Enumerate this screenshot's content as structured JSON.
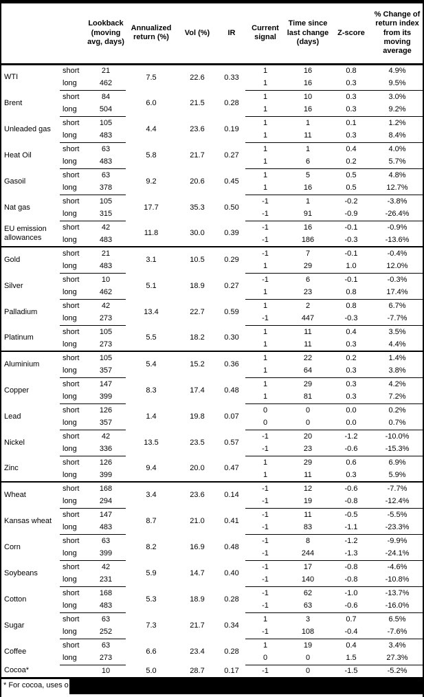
{
  "colors": {
    "text": "#000000",
    "background": "#ffffff",
    "rule": "#000000",
    "redaction": "#000000"
  },
  "table": {
    "columns": [
      {
        "key": "name",
        "label": ""
      },
      {
        "key": "leg",
        "label": ""
      },
      {
        "key": "lookback",
        "label": "Lookback\n(moving\navg, days)"
      },
      {
        "key": "annualized",
        "label": "Annualized\nreturn (%)"
      },
      {
        "key": "vol",
        "label": "Vol (%)"
      },
      {
        "key": "ir",
        "label": "IR"
      },
      {
        "key": "signal",
        "label": "Current\nsignal"
      },
      {
        "key": "time",
        "label": "Time since\nlast change\n(days)"
      },
      {
        "key": "zscore",
        "label": "Z-score"
      },
      {
        "key": "pct",
        "label": "% Change of\nreturn index\nfrom its\nmoving\naverage"
      }
    ],
    "sections": [
      {
        "groups": [
          {
            "name": "WTI",
            "annualized": "7.5",
            "vol": "22.6",
            "ir": "0.33",
            "rows": [
              {
                "leg": "short",
                "lookback": "21",
                "signal": "1",
                "time": "16",
                "zscore": "0.8",
                "pct": "4.9%"
              },
              {
                "leg": "long",
                "lookback": "462",
                "signal": "1",
                "time": "16",
                "zscore": "0.3",
                "pct": "9.5%"
              }
            ]
          },
          {
            "name": "Brent",
            "annualized": "6.0",
            "vol": "21.5",
            "ir": "0.28",
            "rows": [
              {
                "leg": "short",
                "lookback": "84",
                "signal": "1",
                "time": "10",
                "zscore": "0.3",
                "pct": "3.0%"
              },
              {
                "leg": "long",
                "lookback": "504",
                "signal": "1",
                "time": "16",
                "zscore": "0.3",
                "pct": "9.2%"
              }
            ]
          },
          {
            "name": "Unleaded gas",
            "annualized": "4.4",
            "vol": "23.6",
            "ir": "0.19",
            "rows": [
              {
                "leg": "short",
                "lookback": "105",
                "signal": "1",
                "time": "1",
                "zscore": "0.1",
                "pct": "1.2%"
              },
              {
                "leg": "long",
                "lookback": "483",
                "signal": "1",
                "time": "11",
                "zscore": "0.3",
                "pct": "8.4%"
              }
            ]
          },
          {
            "name": "Heat Oil",
            "annualized": "5.8",
            "vol": "21.7",
            "ir": "0.27",
            "rows": [
              {
                "leg": "short",
                "lookback": "63",
                "signal": "1",
                "time": "1",
                "zscore": "0.4",
                "pct": "4.0%"
              },
              {
                "leg": "long",
                "lookback": "483",
                "signal": "1",
                "time": "6",
                "zscore": "0.2",
                "pct": "5.7%"
              }
            ]
          },
          {
            "name": "Gasoil",
            "annualized": "9.2",
            "vol": "20.6",
            "ir": "0.45",
            "rows": [
              {
                "leg": "short",
                "lookback": "63",
                "signal": "1",
                "time": "5",
                "zscore": "0.5",
                "pct": "4.8%"
              },
              {
                "leg": "long",
                "lookback": "378",
                "signal": "1",
                "time": "16",
                "zscore": "0.5",
                "pct": "12.7%"
              }
            ]
          },
          {
            "name": "Nat gas",
            "annualized": "17.7",
            "vol": "35.3",
            "ir": "0.50",
            "rows": [
              {
                "leg": "short",
                "lookback": "105",
                "signal": "-1",
                "time": "1",
                "zscore": "-0.2",
                "pct": "-3.8%"
              },
              {
                "leg": "long",
                "lookback": "315",
                "signal": "-1",
                "time": "91",
                "zscore": "-0.9",
                "pct": "-26.4%"
              }
            ]
          },
          {
            "name": "EU emission allowances",
            "annualized": "11.8",
            "vol": "30.0",
            "ir": "0.39",
            "rows": [
              {
                "leg": "short",
                "lookback": "42",
                "signal": "-1",
                "time": "16",
                "zscore": "-0.1",
                "pct": "-0.9%"
              },
              {
                "leg": "long",
                "lookback": "483",
                "signal": "-1",
                "time": "186",
                "zscore": "-0.3",
                "pct": "-13.6%"
              }
            ]
          }
        ]
      },
      {
        "groups": [
          {
            "name": "Gold",
            "annualized": "3.1",
            "vol": "10.5",
            "ir": "0.29",
            "rows": [
              {
                "leg": "short",
                "lookback": "21",
                "signal": "-1",
                "time": "7",
                "zscore": "-0.1",
                "pct": "-0.4%"
              },
              {
                "leg": "long",
                "lookback": "483",
                "signal": "1",
                "time": "29",
                "zscore": "1.0",
                "pct": "12.0%"
              }
            ]
          },
          {
            "name": "Silver",
            "annualized": "5.1",
            "vol": "18.9",
            "ir": "0.27",
            "rows": [
              {
                "leg": "short",
                "lookback": "10",
                "signal": "-1",
                "time": "6",
                "zscore": "-0.1",
                "pct": "-0.3%"
              },
              {
                "leg": "long",
                "lookback": "462",
                "signal": "1",
                "time": "23",
                "zscore": "0.8",
                "pct": "17.4%"
              }
            ]
          },
          {
            "name": "Palladium",
            "annualized": "13.4",
            "vol": "22.7",
            "ir": "0.59",
            "rows": [
              {
                "leg": "short",
                "lookback": "42",
                "signal": "1",
                "time": "2",
                "zscore": "0.8",
                "pct": "6.7%"
              },
              {
                "leg": "long",
                "lookback": "273",
                "signal": "-1",
                "time": "447",
                "zscore": "-0.3",
                "pct": "-7.7%"
              }
            ]
          },
          {
            "name": "Platinum",
            "annualized": "5.5",
            "vol": "18.2",
            "ir": "0.30",
            "rows": [
              {
                "leg": "short",
                "lookback": "105",
                "signal": "1",
                "time": "11",
                "zscore": "0.4",
                "pct": "3.5%"
              },
              {
                "leg": "long",
                "lookback": "273",
                "signal": "1",
                "time": "11",
                "zscore": "0.3",
                "pct": "4.4%"
              }
            ]
          }
        ]
      },
      {
        "groups": [
          {
            "name": "Aluminium",
            "annualized": "5.4",
            "vol": "15.2",
            "ir": "0.36",
            "rows": [
              {
                "leg": "short",
                "lookback": "105",
                "signal": "1",
                "time": "22",
                "zscore": "0.2",
                "pct": "1.4%"
              },
              {
                "leg": "long",
                "lookback": "357",
                "signal": "1",
                "time": "64",
                "zscore": "0.3",
                "pct": "3.8%"
              }
            ]
          },
          {
            "name": "Copper",
            "annualized": "8.3",
            "vol": "17.4",
            "ir": "0.48",
            "rows": [
              {
                "leg": "short",
                "lookback": "147",
                "signal": "1",
                "time": "29",
                "zscore": "0.3",
                "pct": "4.2%"
              },
              {
                "leg": "long",
                "lookback": "399",
                "signal": "1",
                "time": "81",
                "zscore": "0.3",
                "pct": "7.2%"
              }
            ]
          },
          {
            "name": "Lead",
            "annualized": "1.4",
            "vol": "19.8",
            "ir": "0.07",
            "rows": [
              {
                "leg": "short",
                "lookback": "126",
                "signal": "0",
                "time": "0",
                "zscore": "0.0",
                "pct": "0.2%"
              },
              {
                "leg": "long",
                "lookback": "357",
                "signal": "0",
                "time": "0",
                "zscore": "0.0",
                "pct": "0.7%"
              }
            ]
          },
          {
            "name": "Nickel",
            "annualized": "13.5",
            "vol": "23.5",
            "ir": "0.57",
            "rows": [
              {
                "leg": "short",
                "lookback": "42",
                "signal": "-1",
                "time": "20",
                "zscore": "-1.2",
                "pct": "-10.0%"
              },
              {
                "leg": "long",
                "lookback": "336",
                "signal": "-1",
                "time": "23",
                "zscore": "-0.6",
                "pct": "-15.3%"
              }
            ]
          },
          {
            "name": "Zinc",
            "annualized": "9.4",
            "vol": "20.0",
            "ir": "0.47",
            "rows": [
              {
                "leg": "short",
                "lookback": "126",
                "signal": "1",
                "time": "29",
                "zscore": "0.6",
                "pct": "6.9%"
              },
              {
                "leg": "long",
                "lookback": "399",
                "signal": "1",
                "time": "11",
                "zscore": "0.3",
                "pct": "5.9%"
              }
            ]
          }
        ]
      },
      {
        "groups": [
          {
            "name": "Wheat",
            "annualized": "3.4",
            "vol": "23.6",
            "ir": "0.14",
            "rows": [
              {
                "leg": "short",
                "lookback": "168",
                "signal": "-1",
                "time": "12",
                "zscore": "-0.6",
                "pct": "-7.7%"
              },
              {
                "leg": "long",
                "lookback": "294",
                "signal": "-1",
                "time": "19",
                "zscore": "-0.8",
                "pct": "-12.4%"
              }
            ]
          },
          {
            "name": "Kansas wheat",
            "annualized": "8.7",
            "vol": "21.0",
            "ir": "0.41",
            "rows": [
              {
                "leg": "short",
                "lookback": "147",
                "signal": "-1",
                "time": "11",
                "zscore": "-0.5",
                "pct": "-5.5%"
              },
              {
                "leg": "long",
                "lookback": "483",
                "signal": "-1",
                "time": "83",
                "zscore": "-1.1",
                "pct": "-23.3%"
              }
            ]
          },
          {
            "name": "Corn",
            "annualized": "8.2",
            "vol": "16.9",
            "ir": "0.48",
            "rows": [
              {
                "leg": "short",
                "lookback": "63",
                "signal": "-1",
                "time": "8",
                "zscore": "-1.2",
                "pct": "-9.9%"
              },
              {
                "leg": "long",
                "lookback": "399",
                "signal": "-1",
                "time": "244",
                "zscore": "-1.3",
                "pct": "-24.1%"
              }
            ]
          },
          {
            "name": "Soybeans",
            "annualized": "5.9",
            "vol": "14.7",
            "ir": "0.40",
            "rows": [
              {
                "leg": "short",
                "lookback": "42",
                "signal": "-1",
                "time": "17",
                "zscore": "-0.8",
                "pct": "-4.6%"
              },
              {
                "leg": "long",
                "lookback": "231",
                "signal": "-1",
                "time": "140",
                "zscore": "-0.8",
                "pct": "-10.8%"
              }
            ]
          },
          {
            "name": "Cotton",
            "annualized": "5.3",
            "vol": "18.9",
            "ir": "0.28",
            "rows": [
              {
                "leg": "short",
                "lookback": "168",
                "signal": "-1",
                "time": "62",
                "zscore": "-1.0",
                "pct": "-13.7%"
              },
              {
                "leg": "long",
                "lookback": "483",
                "signal": "-1",
                "time": "63",
                "zscore": "-0.6",
                "pct": "-16.0%"
              }
            ]
          },
          {
            "name": "Sugar",
            "annualized": "7.3",
            "vol": "21.7",
            "ir": "0.34",
            "rows": [
              {
                "leg": "short",
                "lookback": "63",
                "signal": "1",
                "time": "3",
                "zscore": "0.7",
                "pct": "6.5%"
              },
              {
                "leg": "long",
                "lookback": "252",
                "signal": "-1",
                "time": "108",
                "zscore": "-0.4",
                "pct": "-7.6%"
              }
            ]
          },
          {
            "name": "Coffee",
            "annualized": "6.6",
            "vol": "23.4",
            "ir": "0.28",
            "rows": [
              {
                "leg": "short",
                "lookback": "63",
                "signal": "1",
                "time": "19",
                "zscore": "0.4",
                "pct": "3.4%"
              },
              {
                "leg": "long",
                "lookback": "273",
                "signal": "0",
                "time": "0",
                "zscore": "1.5",
                "pct": "27.3%"
              }
            ]
          },
          {
            "name": "Cocoa*",
            "annualized": "5.0",
            "vol": "28.7",
            "ir": "0.17",
            "rows": [
              {
                "leg": "",
                "lookback": "10",
                "signal": "-1",
                "time": "0",
                "zscore": "-1.5",
                "pct": "-5.2%"
              }
            ]
          }
        ]
      }
    ],
    "footnote_visible": "* For cocoa, uses o"
  }
}
